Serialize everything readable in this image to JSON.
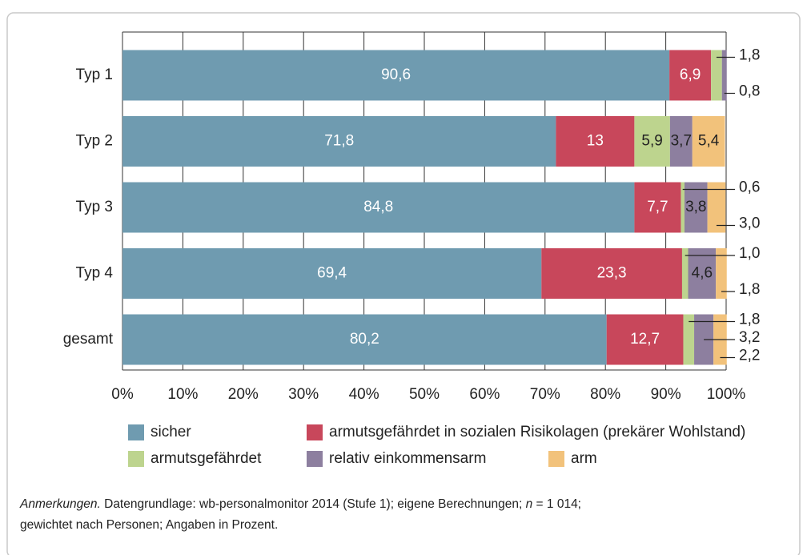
{
  "chart_data": {
    "type": "stacked-barh",
    "categories": [
      "Typ 1",
      "Typ 2",
      "Typ 3",
      "Typ 4",
      "gesamt"
    ],
    "series": [
      {
        "name": "sicher",
        "color": "#6f9bb0",
        "values": [
          90.6,
          71.8,
          84.8,
          69.4,
          80.2
        ],
        "value_labels": [
          "90,6",
          "71,8",
          "84,8",
          "69,4",
          "80,2"
        ]
      },
      {
        "name": "armutsgefährdet in sozialen Risikolagen (prekärer Wohlstand)",
        "color": "#c8475b",
        "values": [
          6.9,
          13,
          7.7,
          23.3,
          12.7
        ],
        "value_labels": [
          "6,9",
          "13",
          "7,7",
          "23,3",
          "12,7"
        ]
      },
      {
        "name": "armutsgefährdet",
        "color": "#bdd48e",
        "values": [
          1.8,
          5.9,
          0.6,
          1.0,
          1.8
        ],
        "value_labels": [
          "1,8",
          "5,9",
          "0,6",
          "1,0",
          "1,8"
        ]
      },
      {
        "name": "relativ einkommensarm",
        "color": "#8d7f9f",
        "values": [
          0.8,
          3.7,
          3.8,
          4.6,
          3.2
        ],
        "value_labels": [
          "0,8",
          "3,7",
          "3,8",
          "4,6",
          "3,2"
        ]
      },
      {
        "name": "arm",
        "color": "#f2c27b",
        "values": [
          null,
          5.4,
          3.0,
          1.8,
          2.2
        ],
        "value_labels": [
          null,
          "5,4",
          "3,0",
          "1,8",
          "2,2"
        ]
      }
    ],
    "xlim": [
      0,
      100
    ],
    "xticks": [
      {
        "value": 0,
        "label": "0%"
      },
      {
        "value": 10,
        "label": "10%"
      },
      {
        "value": 20,
        "label": "20%"
      },
      {
        "value": 30,
        "label": "30%"
      },
      {
        "value": 40,
        "label": "40%"
      },
      {
        "value": 50,
        "label": "50%"
      },
      {
        "value": 60,
        "label": "60%"
      },
      {
        "value": 70,
        "label": "70%"
      },
      {
        "value": 80,
        "label": "80%"
      },
      {
        "value": 90,
        "label": "90%"
      },
      {
        "value": 100,
        "label": "100%"
      }
    ],
    "grid": true
  },
  "note": {
    "lead": "Anmerkungen.",
    "text1": " Datengrundlage: wb-personalmonitor 2014 (Stufe 1); eigene Berechnungen; ",
    "n": "n",
    "text2": " = 1 014;",
    "line2": "gewichtet nach Personen; Angaben in Prozent."
  }
}
